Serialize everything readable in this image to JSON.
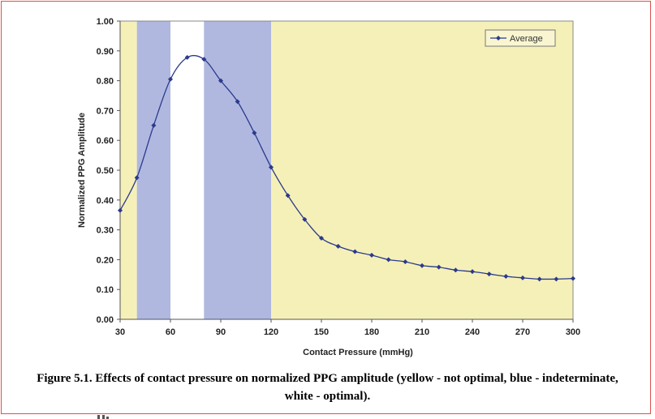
{
  "chart_data": {
    "type": "line",
    "title": "",
    "xlabel": "Contact Pressure (mmHg)",
    "ylabel": "Normalized PPG Amplitude",
    "xlim": [
      30,
      300
    ],
    "ylim": [
      0,
      1.0
    ],
    "xticks": [
      30,
      60,
      90,
      120,
      150,
      180,
      210,
      240,
      270,
      300
    ],
    "yticks": [
      0.0,
      0.1,
      0.2,
      0.3,
      0.4,
      0.5,
      0.6,
      0.7,
      0.8,
      0.9,
      1.0
    ],
    "xtick_labels": [
      "30",
      "60",
      "90",
      "120",
      "150",
      "180",
      "210",
      "240",
      "270",
      "300"
    ],
    "ytick_labels": [
      "0.00",
      "0.10",
      "0.20",
      "0.30",
      "0.40",
      "0.50",
      "0.60",
      "0.70",
      "0.80",
      "0.90",
      "1.00"
    ],
    "grid": false,
    "legend_position": "top-right",
    "series": [
      {
        "name": "Average",
        "color": "#2b3a8c",
        "x": [
          30,
          40,
          50,
          60,
          70,
          80,
          90,
          100,
          110,
          120,
          130,
          140,
          150,
          160,
          170,
          180,
          190,
          200,
          210,
          220,
          230,
          240,
          250,
          260,
          270,
          280,
          290,
          300
        ],
        "y": [
          0.365,
          0.475,
          0.65,
          0.805,
          0.878,
          0.872,
          0.8,
          0.73,
          0.625,
          0.51,
          0.415,
          0.335,
          0.272,
          0.245,
          0.227,
          0.215,
          0.2,
          0.193,
          0.18,
          0.175,
          0.165,
          0.16,
          0.152,
          0.144,
          0.139,
          0.135,
          0.135,
          0.137
        ]
      }
    ],
    "bands": [
      {
        "from": 30,
        "to": 40,
        "category": "yellow",
        "color": "#f5f0b8"
      },
      {
        "from": 40,
        "to": 60,
        "category": "blue",
        "color": "#b0b8e0"
      },
      {
        "from": 60,
        "to": 80,
        "category": "white",
        "color": "#ffffff"
      },
      {
        "from": 80,
        "to": 120,
        "category": "blue",
        "color": "#b0b8e0"
      },
      {
        "from": 120,
        "to": 300,
        "category": "yellow",
        "color": "#f5f0b8"
      }
    ]
  },
  "caption": "Figure 5.1.  Effects of contact pressure on normalized PPG amplitude (yellow - not optimal, blue - indeterminate, white - optimal).",
  "colors": {
    "frame_border": "#d9534f",
    "axis": "#555555",
    "plot_border": "#8a8a8a"
  }
}
